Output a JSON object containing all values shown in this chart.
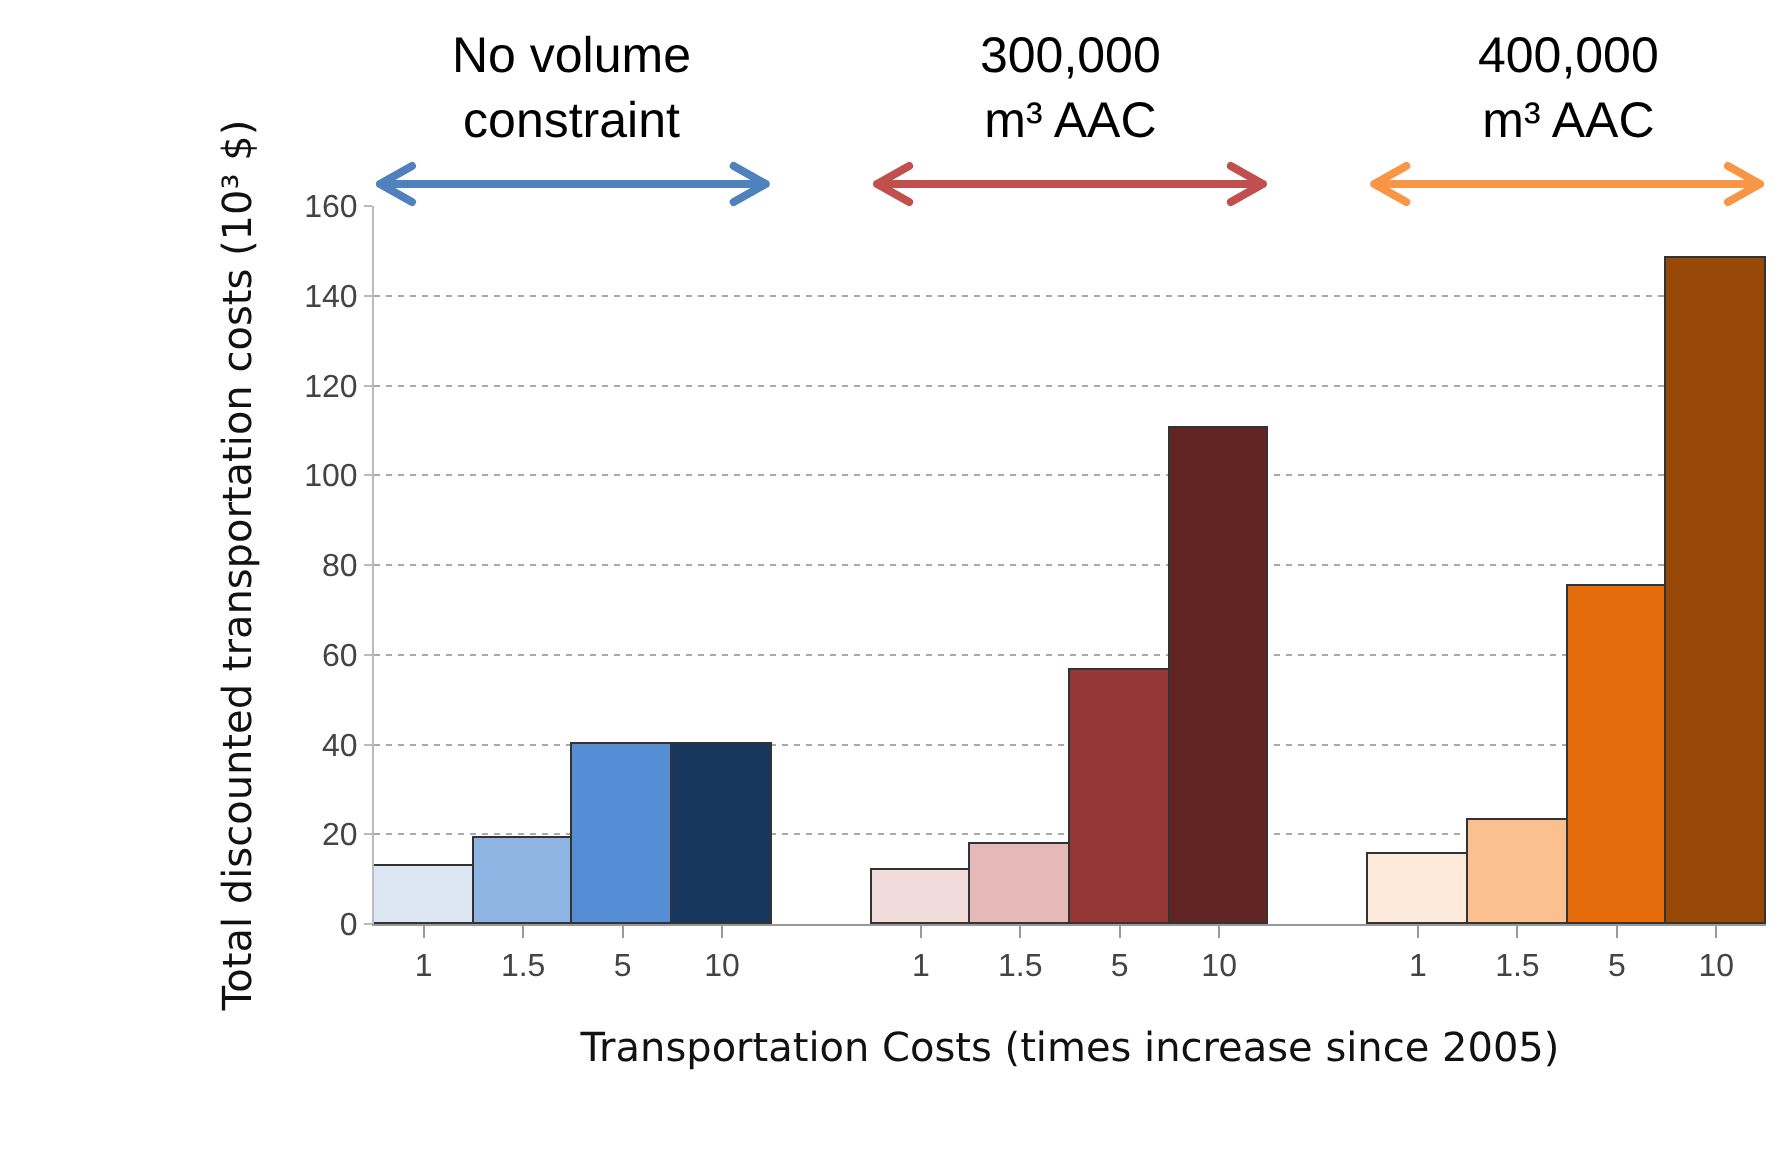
{
  "chart_data": {
    "type": "bar",
    "xlabel": "Transportation Costs (times increase since 2005)",
    "ylabel": "Total discounted transportation costs (10³ $)",
    "categories": [
      "1",
      "1.5",
      "5",
      "10",
      null,
      "1",
      "1.5",
      "5",
      "10",
      null,
      "1",
      "1.5",
      "5",
      "10"
    ],
    "values": [
      13,
      19,
      40,
      40,
      null,
      12,
      18,
      56.5,
      110.5,
      null,
      15.5,
      23,
      75.5,
      148.5
    ],
    "colors": [
      "#dce6f2",
      "#8eb4e3",
      "#558ed5",
      "#17375e",
      "#ffffff",
      "#f2dcdb",
      "#e6b9b8",
      "#953735",
      "#632523",
      "#ffffff",
      "#fdeada",
      "#fac090",
      "#e46c0a",
      "#984807"
    ],
    "ylim": [
      0,
      160
    ],
    "yticks": [
      0,
      20,
      40,
      60,
      80,
      100,
      120,
      140,
      160
    ],
    "grid": "y",
    "annotations": [
      "No volume constraint",
      "300,000 m³ AAC",
      "400,000 m³ AAC"
    ]
  }
}
